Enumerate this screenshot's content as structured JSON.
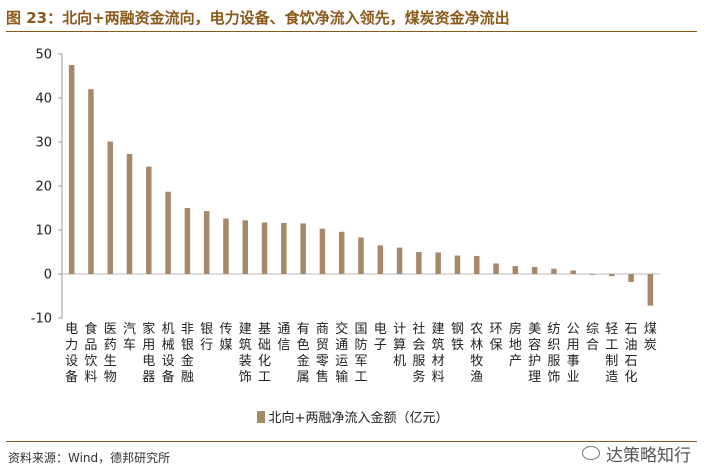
{
  "figure": {
    "title": "图 23：北向+两融资金流向，电力设备、食饮净流入领先，煤炭资金净流出",
    "source": "资料来源：Wind，德邦研究所",
    "watermark": "达策略知行"
  },
  "colors": {
    "bar": "#a5896a",
    "title": "#8a5a1a"
  },
  "chart_data": {
    "type": "bar",
    "title": "",
    "xlabel": "",
    "ylabel": "",
    "ylim": [
      -10,
      50
    ],
    "yticks": [
      -10,
      0,
      10,
      20,
      30,
      40,
      50
    ],
    "grid": false,
    "legend": "bottom-center",
    "categories": [
      "电力设备",
      "食品饮料",
      "医药生物",
      "汽车",
      "家用电器",
      "机械设备",
      "非银金融",
      "银行",
      "传媒",
      "建筑装饰",
      "基础化工",
      "通信",
      "有色金属",
      "商贸零售",
      "交通运输",
      "国防军工",
      "电子",
      "计算机",
      "社会服务",
      "建筑材料",
      "钢铁",
      "农林牧渔",
      "环保",
      "房地产",
      "美容护理",
      "纺织服饰",
      "公用事业",
      "综合",
      "轻工制造",
      "石油石化",
      "煤炭"
    ],
    "series": [
      {
        "name": "北向+两融净流入金额（亿元）",
        "values": [
          47.5,
          42.0,
          30.1,
          27.3,
          24.4,
          18.7,
          15.0,
          14.3,
          12.6,
          12.2,
          11.7,
          11.6,
          11.5,
          10.3,
          9.6,
          8.3,
          6.5,
          6.0,
          5.0,
          4.9,
          4.2,
          4.1,
          2.4,
          1.8,
          1.6,
          1.2,
          0.8,
          -0.1,
          -0.5,
          -1.8,
          -7.2
        ]
      }
    ]
  }
}
